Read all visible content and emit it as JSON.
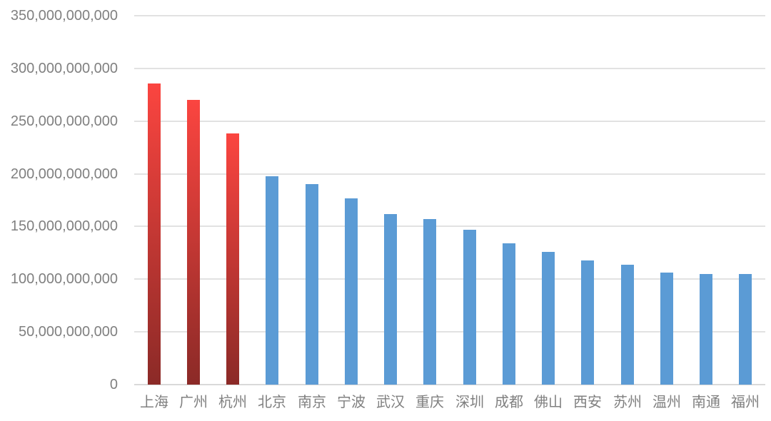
{
  "chart_data": {
    "type": "bar",
    "title": "",
    "categories": [
      "上海",
      "广州",
      "杭州",
      "北京",
      "南京",
      "宁波",
      "武汉",
      "重庆",
      "深圳",
      "成都",
      "佛山",
      "西安",
      "苏州",
      "温州",
      "南通",
      "福州"
    ],
    "values": [
      286000000000,
      270000000000,
      238000000000,
      198000000000,
      190000000000,
      177000000000,
      162000000000,
      157000000000,
      147000000000,
      134000000000,
      126000000000,
      118000000000,
      114000000000,
      106000000000,
      105000000000,
      105000000000
    ],
    "highlighted_categories": [
      "上海",
      "广州",
      "杭州"
    ],
    "highlight_count": 3,
    "xlabel": "",
    "ylabel": "",
    "ylim": [
      0,
      350000000000
    ],
    "ytick_interval": 50000000000,
    "ytick_labels": [
      "0",
      "50,000,000,000",
      "100,000,000,000",
      "150,000,000,000",
      "200,000,000,000",
      "250,000,000,000",
      "300,000,000,000",
      "350,000,000,000"
    ],
    "grid": true,
    "legend": "none",
    "colors": {
      "bar_blue": "#5b9bd5",
      "bar_red_gradient_top": "#fb4540",
      "bar_red_gradient_bottom": "#8b2a27",
      "gridline": "#e2e2e2",
      "axis_text": "#808080",
      "background": "#ffffff"
    }
  }
}
